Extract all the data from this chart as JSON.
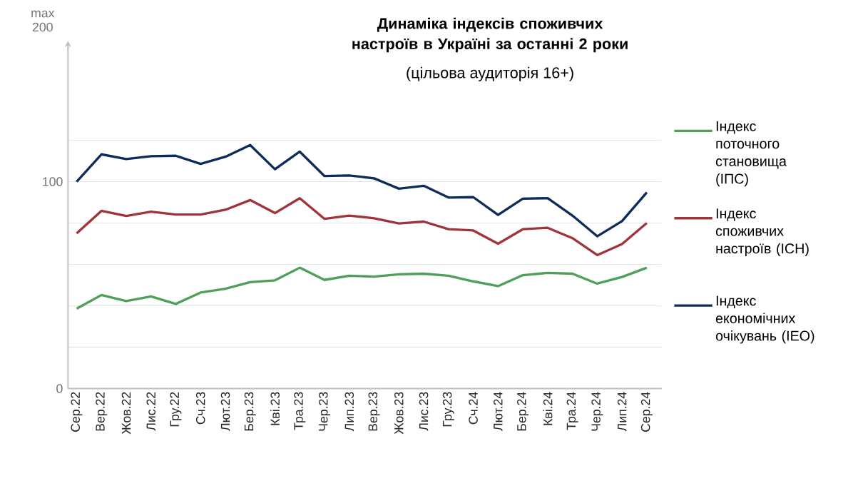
{
  "chart_data": {
    "type": "line",
    "title": "Динаміка індексів споживчих настроїв в Україні за останні 2 роки",
    "subtitle": "(цільова аудиторія 16+)",
    "annotations": [
      "max 200"
    ],
    "categories": [
      "Сер.22",
      "Вер.22",
      "Жов.22",
      "Лис.22",
      "Гру.22",
      "Сч.23",
      "Лют.23",
      "Бер.23",
      "Кві.23",
      "Тра.23",
      "Чер.23",
      "Лип.23",
      "Вер.23",
      "Жов.23",
      "Лис.23",
      "Гру.23",
      "Сч.24",
      "Лют.24",
      "Бер.24",
      "Кві.24",
      "Тра.24",
      "Чер.24",
      "Лип.24",
      "Сер.24"
    ],
    "series": [
      {
        "name": "Індекс поточного становища (ІПС)",
        "color": "#4e9f57",
        "values": [
          38.6,
          45.2,
          42.3,
          44.5,
          40.9,
          46.4,
          48.2,
          51.4,
          52.3,
          58.4,
          52.5,
          54.5,
          54.1,
          55.2,
          55.5,
          54.5,
          51.8,
          49.5,
          54.8,
          55.9,
          55.5,
          50.7,
          53.9,
          58.4
        ]
      },
      {
        "name": "Індекс споживчих настроїв (ІСН)",
        "color": "#a0343b",
        "values": [
          75,
          85.9,
          83.4,
          85.5,
          84.1,
          84.1,
          86.4,
          91.1,
          84.8,
          92,
          82,
          83.6,
          82.3,
          79.8,
          80.7,
          77,
          76.4,
          70,
          77,
          77.7,
          72.7,
          64.5,
          69.8,
          80
        ]
      },
      {
        "name": "Індекс економічних очікувань (ІЕО)",
        "color": "#0e2b5c",
        "values": [
          100,
          113.2,
          110.9,
          112.3,
          112.5,
          108.6,
          112,
          117.7,
          106,
          114.5,
          102.7,
          103,
          101.6,
          96.6,
          98,
          92.3,
          92.5,
          83.9,
          91.8,
          92,
          83.6,
          73.6,
          80.9,
          94.8
        ]
      }
    ],
    "ylim": [
      0,
      165
    ],
    "yticks": [
      0,
      {
        "value": 20,
        "label": null
      },
      {
        "value": 40,
        "label": null
      },
      {
        "value": 60,
        "label": null
      },
      {
        "value": 80,
        "label": null
      },
      100,
      {
        "value": 120,
        "label": null
      }
    ],
    "grid": "y",
    "legend": "right"
  }
}
